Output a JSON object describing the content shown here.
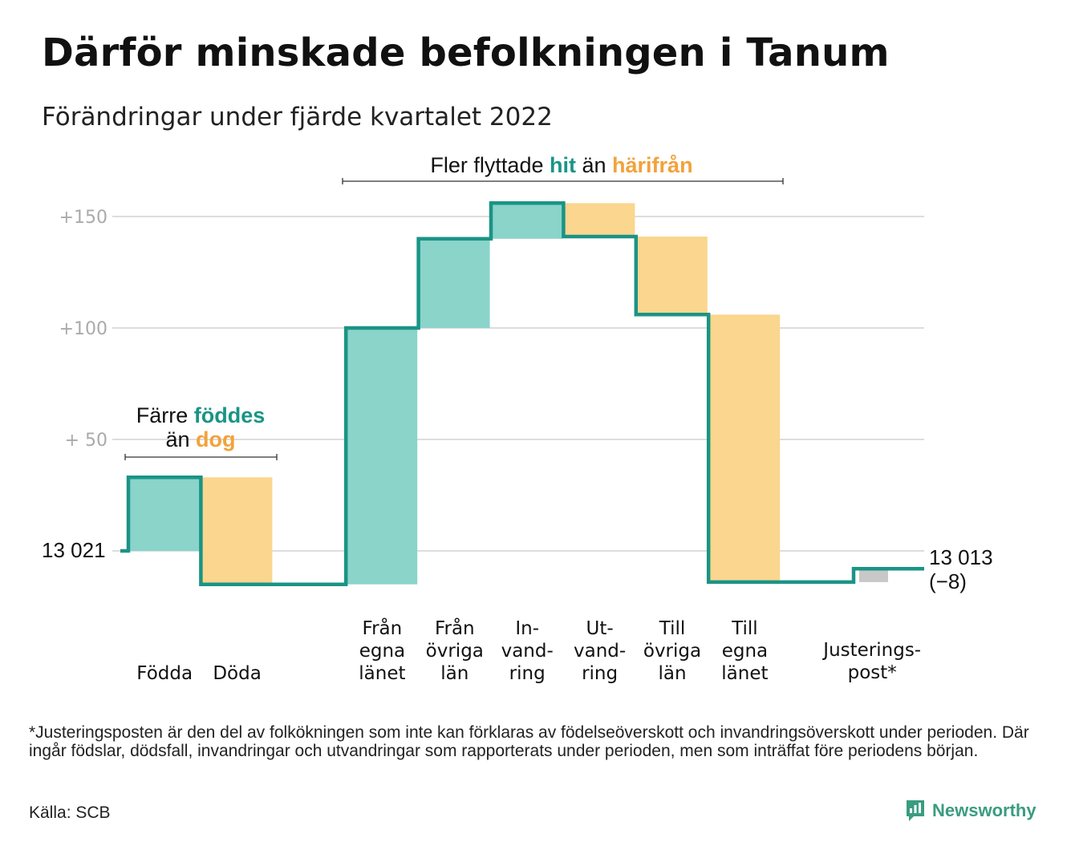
{
  "title": "Därför minskade befolkningen i Tanum",
  "subtitle": "Förändringar under fjärde kvartalet 2022",
  "annotations": {
    "left": {
      "line1_pre": "Färre ",
      "line1_hl": "föddes",
      "line2_pre": "än ",
      "line2_hl": "dog"
    },
    "top": {
      "pre": "Fler flyttade ",
      "hl1": "hit",
      "mid": " än ",
      "hl2": "härifrån"
    }
  },
  "start_label": "13 021",
  "end_label": {
    "line1": "13 013",
    "line2": "(−8)"
  },
  "footnote": "*Justeringsposten är den del av folkökningen som inte kan förklaras av födelseöverskott och invandringsöverskott under perioden. Där ingår födslar, dödsfall, invandringar och utvandringar som rapporterats under perioden, men som inträffat före periodens början.",
  "source": "Källa: SCB",
  "brand": "Newsworthy",
  "colors": {
    "increase": "#8ad4ca",
    "decrease": "#fad68e",
    "adjustment": "#c8c8c8",
    "line": "#1a9485",
    "accent_green": "#1a9485",
    "accent_orange": "#f2a23a",
    "grid": "#dddddd",
    "tick_text": "#aaaaaa"
  },
  "chart_data": {
    "type": "waterfall",
    "title": "Därför minskade befolkningen i Tanum",
    "subtitle": "Förändringar under fjärde kvartalet 2022",
    "baseline": 13021,
    "baseline_label": "13 021",
    "final": 13013,
    "final_label": "13 013",
    "net_change": -8,
    "y_ticks": [
      {
        "value": 150,
        "label": "+150"
      },
      {
        "value": 100,
        "label": "+100"
      },
      {
        "value": 50,
        "label": "+ 50"
      }
    ],
    "ylim": [
      -15,
      160
    ],
    "grid": true,
    "steps": [
      {
        "label": [
          "Födda"
        ],
        "delta": 33,
        "kind": "increase"
      },
      {
        "label": [
          "Döda"
        ],
        "delta": -48,
        "kind": "decrease"
      },
      {
        "label": [
          ""
        ],
        "delta": 0,
        "kind": "spacer"
      },
      {
        "label": [
          "Från",
          "egna",
          "länet"
        ],
        "delta": 115,
        "kind": "increase"
      },
      {
        "label": [
          "Från",
          "övriga",
          "län"
        ],
        "delta": 40,
        "kind": "increase"
      },
      {
        "label": [
          "In-",
          "vand-",
          "ring"
        ],
        "delta": 16,
        "kind": "increase"
      },
      {
        "label": [
          "Ut-",
          "vand-",
          "ring"
        ],
        "delta": -15,
        "kind": "decrease"
      },
      {
        "label": [
          "Till",
          "övriga",
          "län"
        ],
        "delta": -35,
        "kind": "decrease"
      },
      {
        "label": [
          "Till",
          "egna",
          "länet"
        ],
        "delta": -120,
        "kind": "decrease"
      },
      {
        "label": [
          ""
        ],
        "delta": 0,
        "kind": "spacer"
      },
      {
        "label": [
          "Justerings-",
          "post*"
        ],
        "delta": 6,
        "kind": "adjustment"
      }
    ]
  }
}
